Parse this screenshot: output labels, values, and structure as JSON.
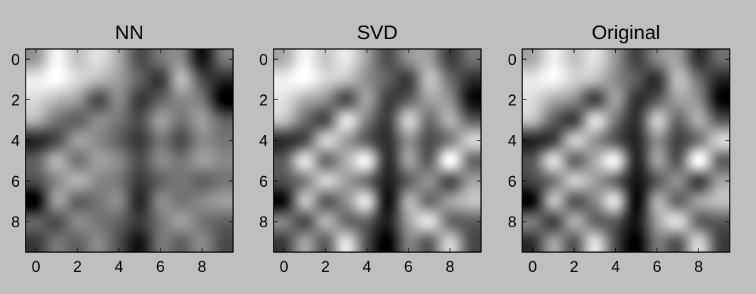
{
  "figure": {
    "background": "#bfbfbf"
  },
  "chart_data": [
    {
      "type": "heatmap",
      "title": "NN",
      "colormap": "gray",
      "interpolation": "bicubic",
      "xlim": [
        -0.5,
        9.5
      ],
      "ylim": [
        9.5,
        -0.5
      ],
      "xticks": [
        0,
        2,
        4,
        6,
        8
      ],
      "yticks": [
        0,
        2,
        4,
        6,
        8
      ],
      "grid": false,
      "values": [
        [
          0.55,
          0.78,
          0.65,
          0.72,
          0.58,
          0.35,
          0.45,
          0.5,
          0.2,
          0.45
        ],
        [
          0.75,
          0.8,
          0.7,
          0.62,
          0.55,
          0.4,
          0.3,
          0.62,
          0.35,
          0.25
        ],
        [
          0.7,
          0.62,
          0.55,
          0.35,
          0.5,
          0.3,
          0.4,
          0.5,
          0.45,
          0.15
        ],
        [
          0.6,
          0.45,
          0.4,
          0.5,
          0.45,
          0.35,
          0.55,
          0.45,
          0.55,
          0.4
        ],
        [
          0.25,
          0.35,
          0.55,
          0.5,
          0.4,
          0.3,
          0.45,
          0.35,
          0.5,
          0.45
        ],
        [
          0.4,
          0.6,
          0.45,
          0.55,
          0.5,
          0.35,
          0.5,
          0.45,
          0.55,
          0.5
        ],
        [
          0.35,
          0.5,
          0.6,
          0.5,
          0.45,
          0.3,
          0.4,
          0.45,
          0.4,
          0.45
        ],
        [
          0.15,
          0.55,
          0.4,
          0.45,
          0.5,
          0.25,
          0.5,
          0.45,
          0.5,
          0.55
        ],
        [
          0.4,
          0.35,
          0.5,
          0.45,
          0.4,
          0.3,
          0.45,
          0.55,
          0.45,
          0.4
        ],
        [
          0.3,
          0.45,
          0.4,
          0.5,
          0.35,
          0.2,
          0.45,
          0.4,
          0.5,
          0.35
        ]
      ]
    },
    {
      "type": "heatmap",
      "title": "SVD",
      "colormap": "gray",
      "interpolation": "bicubic",
      "xlim": [
        -0.5,
        9.5
      ],
      "ylim": [
        9.5,
        -0.5
      ],
      "xticks": [
        0,
        2,
        4,
        6,
        8
      ],
      "yticks": [
        0,
        2,
        4,
        6,
        8
      ],
      "grid": false,
      "values": [
        [
          0.6,
          0.82,
          0.68,
          0.78,
          0.55,
          0.3,
          0.5,
          0.55,
          0.25,
          0.4
        ],
        [
          0.8,
          0.85,
          0.72,
          0.65,
          0.5,
          0.35,
          0.25,
          0.65,
          0.4,
          0.2
        ],
        [
          0.75,
          0.6,
          0.5,
          0.3,
          0.55,
          0.25,
          0.35,
          0.55,
          0.5,
          0.1
        ],
        [
          0.65,
          0.4,
          0.3,
          0.75,
          0.45,
          0.25,
          0.7,
          0.4,
          0.6,
          0.35
        ],
        [
          0.2,
          0.3,
          0.7,
          0.55,
          0.35,
          0.2,
          0.5,
          0.3,
          0.45,
          0.7
        ],
        [
          0.35,
          0.75,
          0.4,
          0.6,
          0.8,
          0.2,
          0.55,
          0.35,
          0.85,
          0.4
        ],
        [
          0.3,
          0.45,
          0.7,
          0.55,
          0.4,
          0.15,
          0.35,
          0.5,
          0.3,
          0.55
        ],
        [
          0.1,
          0.65,
          0.35,
          0.5,
          0.75,
          0.1,
          0.6,
          0.4,
          0.55,
          0.65
        ],
        [
          0.45,
          0.3,
          0.6,
          0.4,
          0.35,
          0.15,
          0.55,
          0.75,
          0.4,
          0.35
        ],
        [
          0.25,
          0.55,
          0.35,
          0.75,
          0.3,
          0.05,
          0.45,
          0.35,
          0.7,
          0.3
        ]
      ]
    },
    {
      "type": "heatmap",
      "title": "Original",
      "colormap": "gray",
      "interpolation": "bicubic",
      "xlim": [
        -0.5,
        9.5
      ],
      "ylim": [
        9.5,
        -0.5
      ],
      "xticks": [
        0,
        2,
        4,
        6,
        8
      ],
      "yticks": [
        0,
        2,
        4,
        6,
        8
      ],
      "grid": false,
      "values": [
        [
          0.62,
          0.85,
          0.7,
          0.8,
          0.55,
          0.28,
          0.5,
          0.58,
          0.22,
          0.4
        ],
        [
          0.82,
          0.88,
          0.75,
          0.68,
          0.52,
          0.35,
          0.22,
          0.68,
          0.42,
          0.18
        ],
        [
          0.78,
          0.62,
          0.52,
          0.28,
          0.58,
          0.22,
          0.35,
          0.58,
          0.52,
          0.08
        ],
        [
          0.68,
          0.38,
          0.28,
          0.78,
          0.45,
          0.22,
          0.72,
          0.4,
          0.62,
          0.35
        ],
        [
          0.18,
          0.28,
          0.72,
          0.55,
          0.35,
          0.18,
          0.52,
          0.28,
          0.45,
          0.75
        ],
        [
          0.35,
          0.78,
          0.4,
          0.62,
          0.85,
          0.18,
          0.58,
          0.35,
          0.9,
          0.4
        ],
        [
          0.28,
          0.45,
          0.72,
          0.58,
          0.4,
          0.12,
          0.35,
          0.52,
          0.28,
          0.58
        ],
        [
          0.08,
          0.68,
          0.35,
          0.5,
          0.78,
          0.08,
          0.62,
          0.4,
          0.58,
          0.68
        ],
        [
          0.45,
          0.28,
          0.62,
          0.4,
          0.35,
          0.12,
          0.58,
          0.78,
          0.4,
          0.35
        ],
        [
          0.22,
          0.58,
          0.35,
          0.78,
          0.3,
          0.05,
          0.45,
          0.35,
          0.75,
          0.28
        ]
      ]
    }
  ]
}
